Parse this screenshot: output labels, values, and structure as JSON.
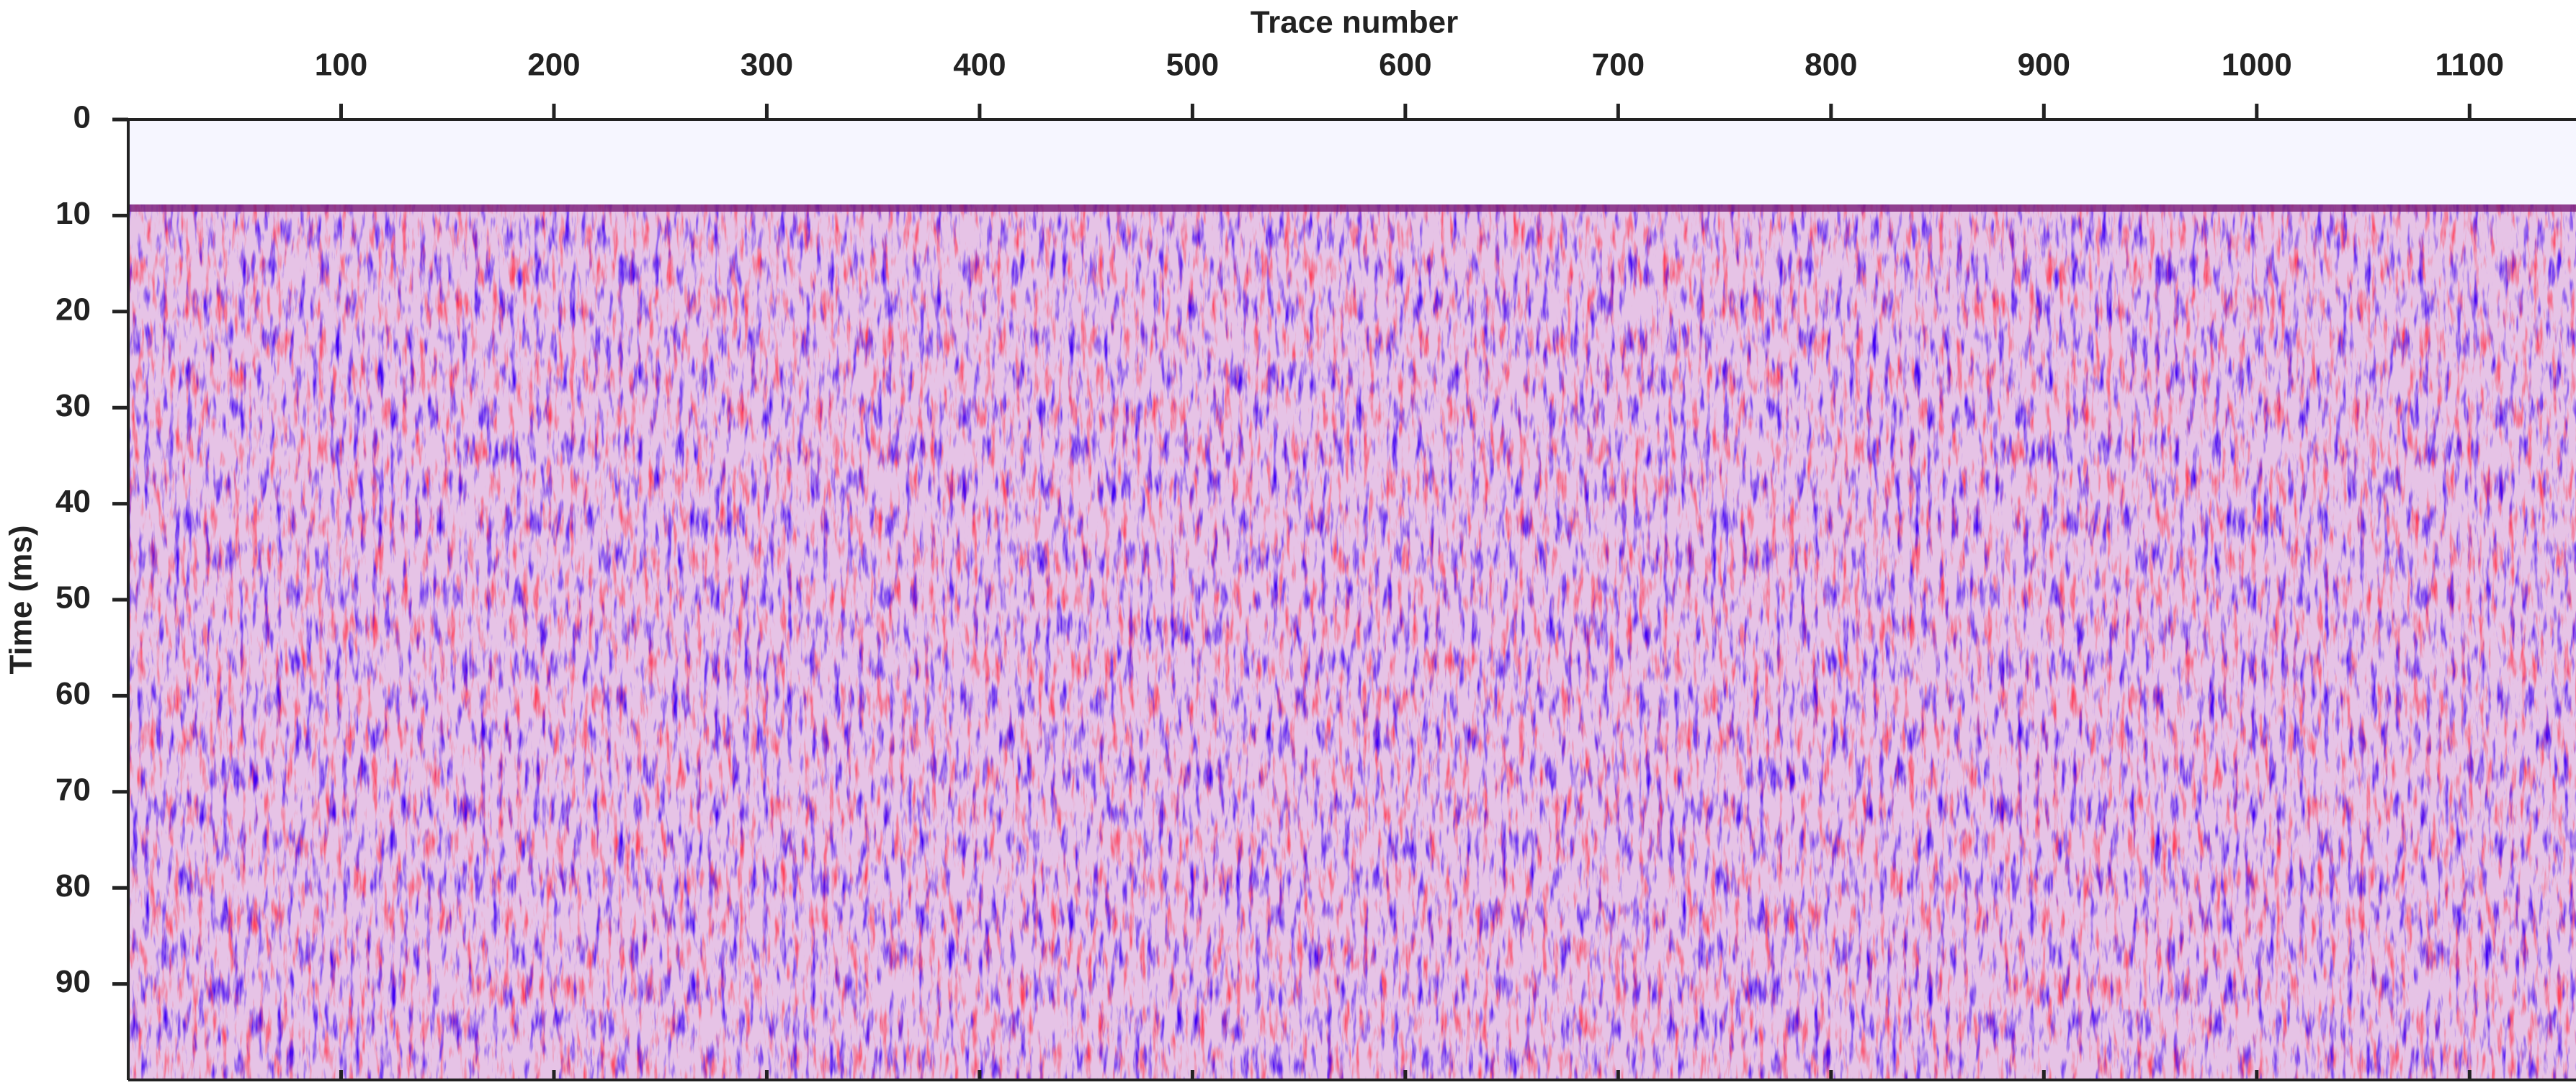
{
  "chart_data": {
    "type": "seismic",
    "xlabel": "Trace number",
    "ylabel": "Time (ms)",
    "xlim": [
      0,
      1150
    ],
    "xticks": [
      100,
      200,
      300,
      400,
      500,
      600,
      700,
      800,
      900,
      1000,
      1100
    ],
    "ylim": [
      0,
      100
    ],
    "yticks": [
      0,
      10,
      20,
      30,
      40,
      50,
      60,
      70,
      80,
      90
    ],
    "y_reversed": true,
    "x_axis_position": "top",
    "colors": [
      "#0000ff",
      "#ffffff",
      "#ff0000"
    ]
  }
}
